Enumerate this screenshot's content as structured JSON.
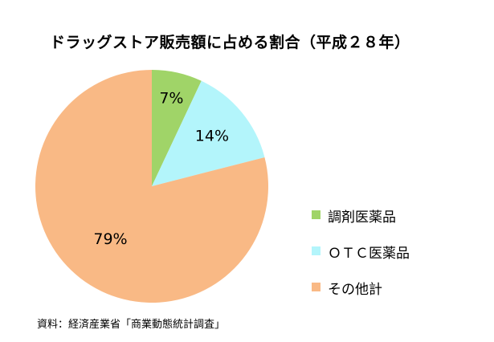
{
  "chart_data": {
    "type": "pie",
    "title": "ドラッグストア販売額に占める割合（平成２８年）",
    "categories": [
      "調剤医薬品",
      "ＯＴＣ医薬品",
      "その他計"
    ],
    "values": [
      7,
      14,
      79
    ],
    "value_labels": [
      "7%",
      "14%",
      "79%"
    ],
    "colors": [
      "#a0d468",
      "#b3f5fb",
      "#f9b985"
    ],
    "legend_position": "right",
    "start_angle": "top, clockwise"
  },
  "source_note": "資料：経済産業省「商業動態統計調査」"
}
